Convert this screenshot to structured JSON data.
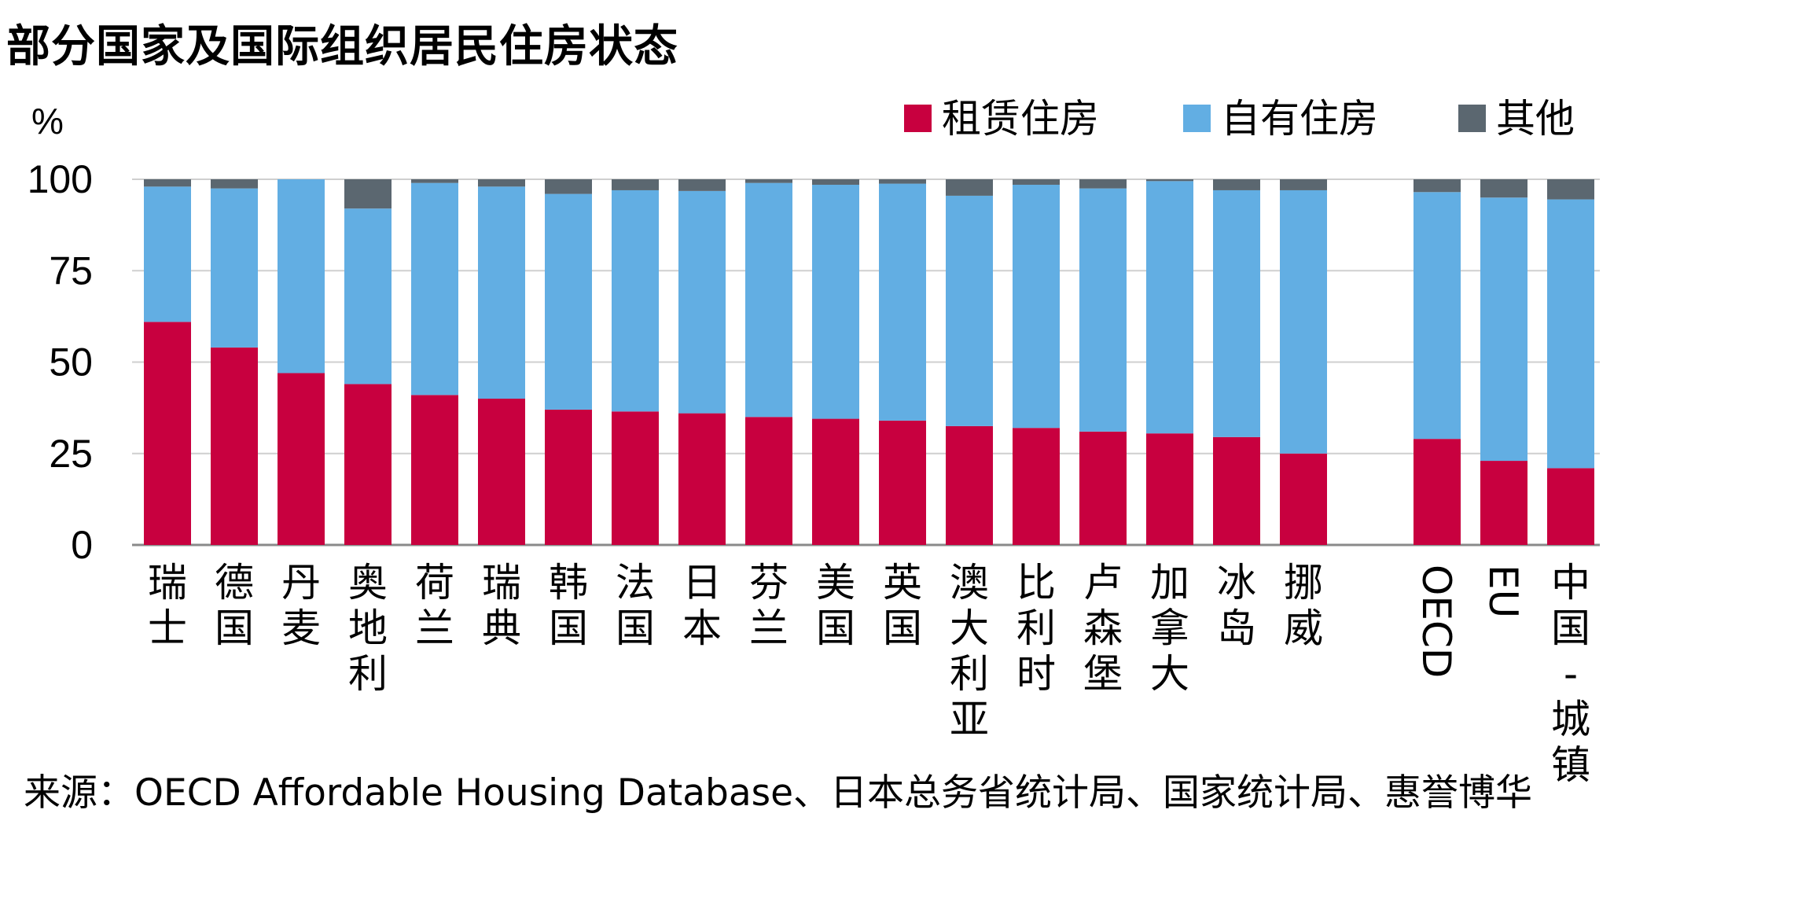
{
  "chart_data": {
    "type": "bar",
    "stacked": true,
    "title": "部分国家及国际组织居民住房状态",
    "ylabel": "%",
    "ylim": [
      0,
      100
    ],
    "yticks": [
      "0",
      "25",
      "50",
      "75",
      "100"
    ],
    "grid": true,
    "legend_position": "top-right",
    "categories": [
      "瑞士",
      "德国",
      "丹麦",
      "奥地利",
      "荷兰",
      "瑞典",
      "韩国",
      "法国",
      "日本",
      "芬兰",
      "美国",
      "英国",
      "澳大利亚",
      "比利时",
      "卢森堡",
      "加拿大",
      "冰岛",
      "挪威",
      "OECD",
      "EU",
      "中国-城镇"
    ],
    "series": [
      {
        "name": "租赁住房",
        "color": "#C8003F",
        "values": [
          61,
          54,
          47,
          44,
          41,
          40,
          37,
          36.5,
          36,
          35,
          34.5,
          34,
          32.5,
          32,
          31,
          30.5,
          29.5,
          25,
          29,
          23,
          21
        ]
      },
      {
        "name": "自有住房",
        "color": "#62AEE3",
        "values": [
          37,
          43.5,
          53,
          48,
          58,
          58,
          59,
          60.5,
          60.8,
          64,
          64,
          64.8,
          63,
          66.5,
          66.5,
          69,
          67.5,
          72,
          67.5,
          72,
          73.5
        ]
      },
      {
        "name": "其他",
        "color": "#5B6770",
        "values": [
          2,
          2.5,
          0,
          8,
          1,
          2,
          4,
          3,
          3.2,
          1,
          1.5,
          1.2,
          4.5,
          1.5,
          2.5,
          0.5,
          3,
          3,
          3.5,
          5,
          5.5
        ]
      }
    ]
  },
  "source": "来源：OECD Affordable Housing Database、日本总务省统计局、国家统计局、惠誉博华"
}
